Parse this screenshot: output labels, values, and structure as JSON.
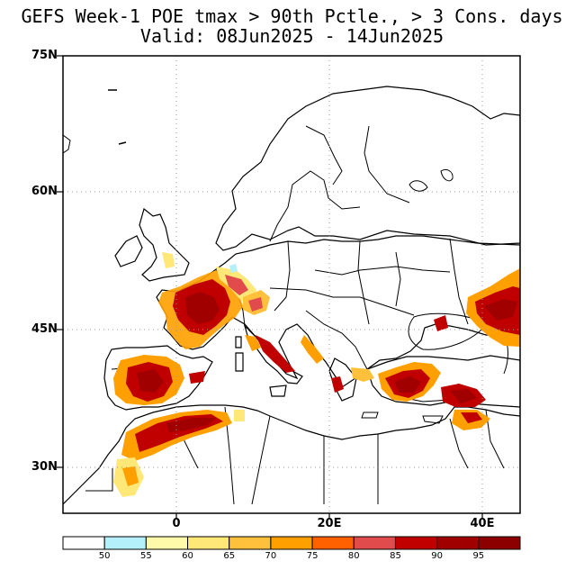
{
  "title": {
    "line1": "GEFS Week-1 POE tmax > 90th Pctle., > 3 Cons. days",
    "line2": "Valid: 08Jun2025 - 14Jun2025"
  },
  "map": {
    "lat_labels": [
      "75N",
      "60N",
      "45N",
      "30N"
    ],
    "lon_labels": [
      "0",
      "20E",
      "40E"
    ],
    "gridlines": "dotted"
  },
  "colorbar": {
    "labels": [
      "50",
      "55",
      "60",
      "65",
      "70",
      "75",
      "80",
      "85",
      "90",
      "95"
    ],
    "colors": [
      "#ffffff",
      "#b4f0fa",
      "#fffaaa",
      "#ffe878",
      "#ffc03c",
      "#ffa000",
      "#ff6000",
      "#e14b4b",
      "#c00000",
      "#a00000",
      "#8c0000"
    ]
  }
}
